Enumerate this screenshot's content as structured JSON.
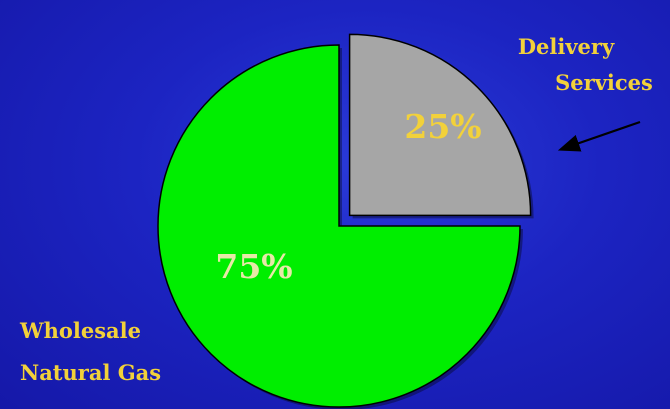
{
  "chart_data": {
    "type": "pie",
    "slices": [
      {
        "label": "Delivery Services",
        "value": 25,
        "value_label": "25%",
        "color": "#a6a6a6",
        "label_color": "#f2d13a",
        "exploded": true
      },
      {
        "label": "Wholesale Natural Gas",
        "value": 75,
        "value_label": "75%",
        "color": "#00ee00",
        "label_color": "#e8e8a8",
        "exploded": false
      }
    ],
    "category_labels": {
      "delivery": [
        "Delivery",
        "Services"
      ],
      "wholesale": [
        "Wholesale",
        "Natural Gas"
      ]
    },
    "background": "#1c24c2"
  }
}
